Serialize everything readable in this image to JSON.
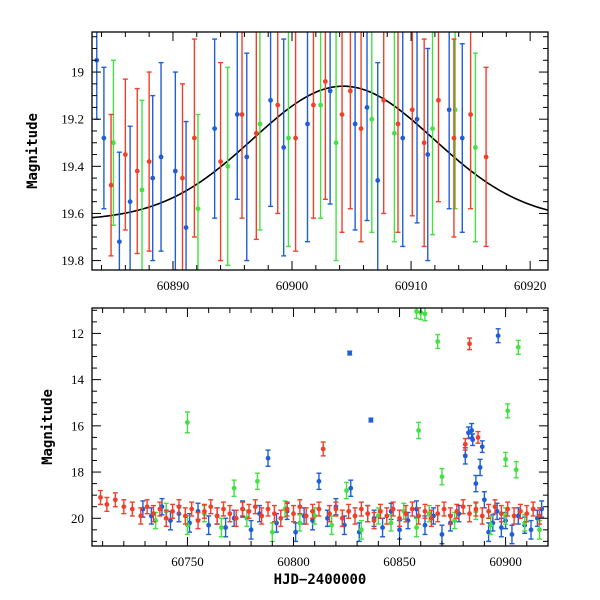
{
  "colors": {
    "blue": "#1f5fd6",
    "green": "#44e044",
    "red": "#f0402a"
  },
  "chart_data": [
    {
      "type": "scatter",
      "panel": "top",
      "xlabel": "",
      "ylabel": "Magnitude",
      "xlim": [
        60883.2,
        60921.5
      ],
      "ylim": [
        19.84,
        18.83
      ],
      "y_inverted": true,
      "xticks": [
        60890,
        60900,
        60910,
        60920
      ],
      "yticks": [
        19.0,
        19.2,
        19.4,
        19.6,
        19.8
      ],
      "ytick_labels": [
        "19",
        "19.2",
        "19.4",
        "19.6",
        "19.8"
      ],
      "model_curve": {
        "type": "gaussian",
        "baseline_mag": 19.63,
        "peak_mag": 19.06,
        "peak_x": 60904.3,
        "sigma_days": 7.6,
        "color": "#000000"
      },
      "series": [
        {
          "color_key": "blue",
          "x": [
            60883.6,
            60884.2,
            60885.5,
            60886.4,
            60888.3,
            60889.0,
            60890.2,
            60891.1,
            60893.5,
            60895.4,
            60896.2,
            60898.2,
            60899.3,
            60901.3,
            60903.2,
            60905.3,
            60906.3,
            60907.2,
            60909.3,
            60910.5,
            60911.4,
            60913.2,
            60914.3
          ],
          "y": [
            18.95,
            19.28,
            19.72,
            19.55,
            19.45,
            19.36,
            19.42,
            19.66,
            19.24,
            19.18,
            19.36,
            19.12,
            19.32,
            19.22,
            19.08,
            19.22,
            19.15,
            19.46,
            19.28,
            19.2,
            19.35,
            19.16,
            19.28
          ],
          "err": [
            0.25,
            0.3,
            0.38,
            0.32,
            0.35,
            0.4,
            0.42,
            0.45,
            0.38,
            0.36,
            0.44,
            0.45,
            0.46,
            0.5,
            0.48,
            0.45,
            0.48,
            0.5,
            0.46,
            0.44,
            0.45,
            0.42,
            0.4
          ]
        },
        {
          "color_key": "green",
          "x": [
            60885.0,
            60887.4,
            60892.1,
            60894.6,
            60897.3,
            60899.7,
            60902.4,
            60903.7,
            60906.7,
            60908.6,
            60911.8,
            60913.7,
            60915.4
          ],
          "y": [
            19.3,
            19.5,
            19.58,
            19.4,
            19.22,
            19.28,
            19.14,
            19.3,
            19.2,
            19.26,
            19.24,
            19.16,
            19.32
          ],
          "err": [
            0.35,
            0.38,
            0.4,
            0.42,
            0.45,
            0.46,
            0.48,
            0.5,
            0.48,
            0.46,
            0.45,
            0.42,
            0.4
          ]
        },
        {
          "color_key": "red",
          "x": [
            60884.8,
            60886.0,
            60887.0,
            60888.0,
            60890.8,
            60891.8,
            60894.0,
            60895.8,
            60897.0,
            60898.8,
            60900.3,
            60901.8,
            60902.8,
            60904.2,
            60904.9,
            60905.8,
            60907.7,
            60908.9,
            60910.1,
            60911.1,
            60912.3,
            60913.6,
            60915.0,
            60916.3
          ],
          "y": [
            19.48,
            19.35,
            19.42,
            19.38,
            19.45,
            19.28,
            19.38,
            19.18,
            19.26,
            19.14,
            19.28,
            19.14,
            19.04,
            19.18,
            19.08,
            19.24,
            19.12,
            19.22,
            19.16,
            19.3,
            19.12,
            19.28,
            19.18,
            19.36
          ],
          "err": [
            0.3,
            0.32,
            0.35,
            0.38,
            0.4,
            0.42,
            0.42,
            0.44,
            0.45,
            0.46,
            0.48,
            0.48,
            0.5,
            0.5,
            0.5,
            0.48,
            0.48,
            0.46,
            0.45,
            0.44,
            0.43,
            0.42,
            0.4,
            0.38
          ]
        }
      ]
    },
    {
      "type": "scatter",
      "panel": "bottom",
      "xlabel": "HJD−2400000",
      "ylabel": "Magnitude",
      "xlim": [
        60705,
        60920
      ],
      "ylim": [
        21.2,
        10.9
      ],
      "y_inverted": true,
      "xticks": [
        60750,
        60800,
        60850,
        60900
      ],
      "yticks": [
        12,
        14,
        16,
        18,
        20
      ],
      "ytick_labels": [
        "12",
        "14",
        "16",
        "18",
        "20"
      ],
      "series": [
        {
          "color_key": "blue",
          "x": [
            60729,
            60733,
            60738,
            60742,
            60746,
            60751,
            60755,
            60760,
            60764,
            60768,
            60772,
            60776,
            60780,
            60784,
            60788,
            60792,
            60797,
            60801,
            60805,
            60809,
            60812,
            60816,
            60820,
            60824,
            60827,
            60831,
            60835,
            60838,
            60842,
            60846,
            60850,
            60854,
            60858,
            60862,
            60866,
            60870,
            60874,
            60878,
            60881,
            60884,
            60886,
            60888,
            60890,
            60892,
            60894,
            60896,
            60898,
            60900,
            60903,
            60906,
            60909,
            60912,
            60915,
            60917,
            60826.5,
            60836.5,
            60896.5,
            60882.5,
            60884.5,
            60889
          ],
          "y": [
            19.6,
            19.9,
            19.5,
            20.1,
            19.8,
            20.2,
            19.7,
            20.3,
            19.9,
            20.4,
            20.0,
            19.6,
            20.5,
            19.8,
            17.4,
            20.2,
            19.7,
            20.6,
            19.9,
            20.1,
            18.4,
            20.0,
            19.5,
            20.3,
            18.7,
            20.6,
            19.8,
            20.0,
            20.4,
            19.7,
            20.5,
            20.1,
            19.6,
            20.3,
            19.9,
            20.7,
            20.2,
            19.8,
            17.3,
            16.2,
            18.5,
            17.8,
            19.2,
            20.6,
            20.2,
            19.7,
            20.4,
            20.1,
            20.7,
            19.9,
            20.3,
            20.5,
            20.0,
            19.6,
            12.85,
            15.75,
            12.1,
            16.3,
            16.6,
            16.9
          ],
          "err": [
            0.35,
            0.35,
            0.35,
            0.4,
            0.35,
            0.4,
            0.35,
            0.4,
            0.35,
            0.4,
            0.35,
            0.35,
            0.4,
            0.35,
            0.35,
            0.4,
            0.35,
            0.4,
            0.35,
            0.4,
            0.35,
            0.35,
            0.35,
            0.4,
            0.35,
            0.4,
            0.35,
            0.35,
            0.4,
            0.35,
            0.4,
            0.35,
            0.35,
            0.4,
            0.35,
            0.4,
            0.35,
            0.35,
            0.35,
            0.3,
            0.35,
            0.35,
            0.35,
            0.4,
            0.35,
            0.35,
            0.4,
            0.35,
            0.4,
            0.35,
            0.35,
            0.4,
            0.35,
            0.35,
            0.08,
            0.08,
            0.3,
            0.25,
            0.25,
            0.25
          ]
        },
        {
          "color_key": "green",
          "x": [
            60735,
            60740,
            60750,
            60758,
            60766,
            60772,
            60778,
            60783,
            60790,
            60796,
            60803,
            60810,
            60818,
            60825,
            60832,
            60840,
            60846,
            60852,
            60858,
            60864,
            60870,
            60876,
            60886,
            60893,
            60900,
            60905,
            60909,
            60916,
            60750,
            60858,
            60860,
            60862,
            60868,
            60859,
            60900,
            60901,
            60906
          ],
          "y": [
            20.1,
            19.7,
            20.3,
            19.8,
            20.4,
            18.7,
            20.0,
            18.4,
            20.6,
            19.6,
            20.2,
            19.9,
            20.3,
            18.8,
            20.5,
            19.9,
            20.2,
            19.7,
            20.4,
            19.8,
            18.2,
            20.1,
            19.7,
            20.3,
            19.9,
            17.9,
            20.2,
            20.5,
            15.85,
            11.05,
            11.1,
            11.15,
            12.35,
            16.2,
            17.45,
            15.35,
            12.6
          ],
          "err": [
            0.35,
            0.35,
            0.4,
            0.35,
            0.4,
            0.35,
            0.35,
            0.35,
            0.4,
            0.35,
            0.35,
            0.35,
            0.4,
            0.35,
            0.4,
            0.35,
            0.35,
            0.35,
            0.4,
            0.35,
            0.35,
            0.35,
            0.35,
            0.4,
            0.35,
            0.35,
            0.35,
            0.4,
            0.45,
            0.3,
            0.3,
            0.3,
            0.3,
            0.35,
            0.3,
            0.3,
            0.3
          ]
        },
        {
          "color_key": "red",
          "x": [
            60709,
            60712,
            60716,
            60720,
            60724,
            60728,
            60731,
            60734,
            60737,
            60740,
            60743,
            60746,
            60749,
            60752,
            60755,
            60758,
            60761,
            60764,
            60767,
            60770,
            60773,
            60776,
            60779,
            60782,
            60785,
            60788,
            60791,
            60794,
            60797,
            60800,
            60803,
            60806,
            60809,
            60812,
            60814,
            60817,
            60820,
            60823,
            60826,
            60829,
            60832,
            60835,
            60838,
            60841,
            60844,
            60847,
            60850,
            60853,
            60856,
            60859,
            60862,
            60865,
            60868,
            60871,
            60874,
            60877,
            60880,
            60883,
            60886,
            60889,
            60892,
            60895,
            60898,
            60901,
            60904,
            60907,
            60910,
            60913,
            60916,
            60883,
            60887,
            60881
          ],
          "y": [
            19.1,
            19.4,
            19.2,
            19.5,
            19.6,
            19.9,
            19.5,
            19.8,
            19.6,
            20.0,
            19.7,
            19.5,
            19.9,
            19.6,
            20.1,
            19.7,
            19.5,
            19.9,
            19.6,
            19.8,
            20.0,
            19.6,
            19.7,
            19.5,
            19.9,
            19.6,
            19.8,
            20.0,
            19.6,
            19.8,
            19.5,
            19.9,
            19.7,
            19.6,
            17.0,
            19.8,
            19.6,
            20.0,
            19.7,
            19.9,
            19.6,
            19.8,
            20.1,
            19.7,
            19.9,
            19.6,
            20.0,
            19.8,
            19.6,
            19.9,
            19.7,
            20.0,
            19.8,
            19.6,
            19.9,
            19.7,
            19.5,
            19.8,
            19.6,
            19.9,
            19.7,
            19.5,
            19.8,
            19.6,
            19.9,
            19.7,
            19.8,
            19.6,
            19.9,
            12.45,
            16.5,
            16.8
          ],
          "err": [
            0.3,
            0.3,
            0.3,
            0.3,
            0.3,
            0.35,
            0.3,
            0.35,
            0.3,
            0.35,
            0.3,
            0.3,
            0.35,
            0.3,
            0.35,
            0.3,
            0.3,
            0.35,
            0.3,
            0.35,
            0.35,
            0.3,
            0.3,
            0.3,
            0.35,
            0.3,
            0.35,
            0.35,
            0.3,
            0.35,
            0.3,
            0.35,
            0.3,
            0.3,
            0.3,
            0.35,
            0.3,
            0.35,
            0.3,
            0.35,
            0.3,
            0.35,
            0.35,
            0.3,
            0.35,
            0.3,
            0.35,
            0.35,
            0.3,
            0.35,
            0.3,
            0.35,
            0.35,
            0.3,
            0.35,
            0.3,
            0.3,
            0.35,
            0.3,
            0.35,
            0.3,
            0.3,
            0.35,
            0.3,
            0.35,
            0.3,
            0.35,
            0.3,
            0.35,
            0.25,
            0.25,
            0.25
          ]
        }
      ]
    }
  ]
}
